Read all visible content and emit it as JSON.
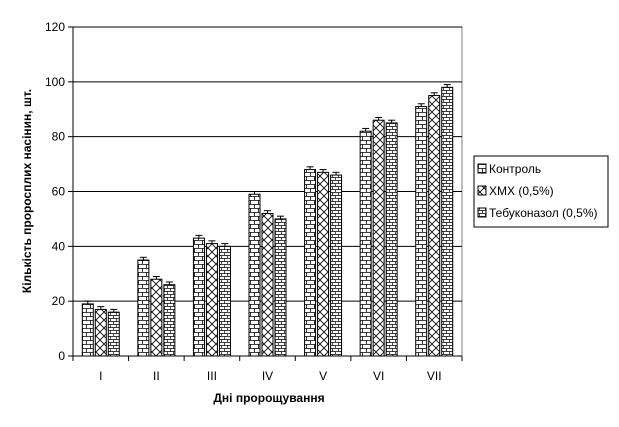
{
  "chart_data": {
    "type": "bar",
    "title": "",
    "xlabel": "Дні пророщування",
    "ylabel": "Кількість проросплих насінин, шт.",
    "categories": [
      "I",
      "II",
      "III",
      "IV",
      "V",
      "VI",
      "VII"
    ],
    "ylim": [
      0,
      120
    ],
    "yticks": [
      0,
      20,
      40,
      60,
      80,
      100,
      120
    ],
    "grid": true,
    "legend_position": "right",
    "error_bars": true,
    "series": [
      {
        "name": "Контроль",
        "pattern": "brick-vertical",
        "values": [
          19,
          35,
          43,
          59,
          68,
          82,
          91
        ]
      },
      {
        "name": "ХМХ (0,5%)",
        "pattern": "diagonal-cross",
        "values": [
          17,
          28,
          41,
          52,
          67,
          86,
          95
        ]
      },
      {
        "name": "Тебуконазол (0,5%)",
        "pattern": "brick-horizontal",
        "values": [
          16,
          26,
          40,
          50,
          66,
          85,
          98
        ]
      }
    ]
  }
}
